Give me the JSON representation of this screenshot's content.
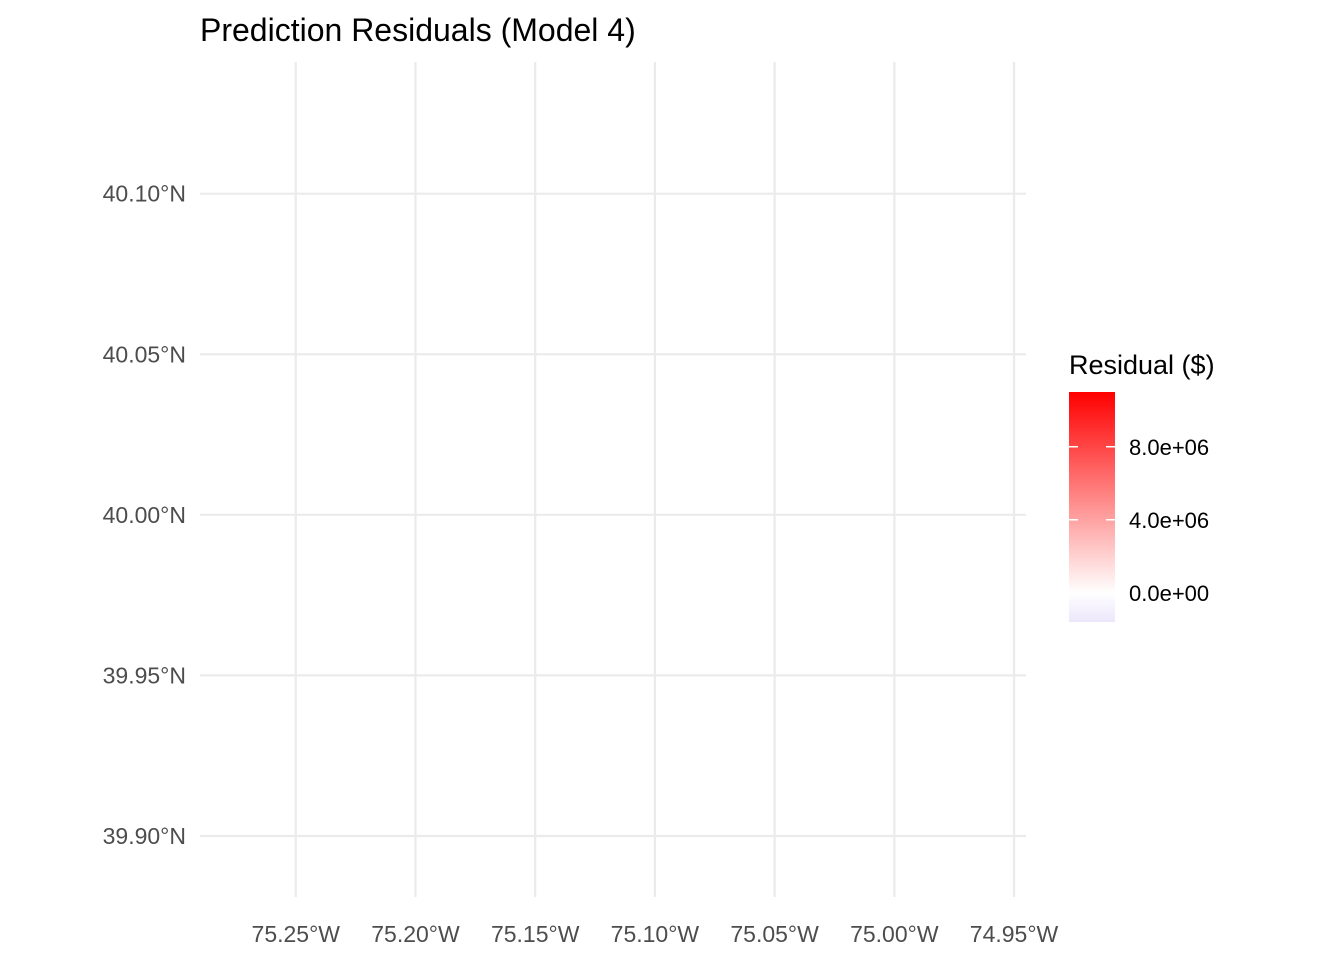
{
  "chart_data": {
    "type": "map",
    "title": "Prediction Residuals (Model 4)",
    "xlabel": "",
    "ylabel": "",
    "xlim": [
      -75.29,
      -74.945
    ],
    "ylim": [
      39.881,
      40.141
    ],
    "x_ticks": [
      {
        "value": -75.25,
        "label": "75.25°W"
      },
      {
        "value": -75.2,
        "label": "75.20°W"
      },
      {
        "value": -75.15,
        "label": "75.15°W"
      },
      {
        "value": -75.1,
        "label": "75.10°W"
      },
      {
        "value": -75.05,
        "label": "75.05°W"
      },
      {
        "value": -75.0,
        "label": "75.00°W"
      },
      {
        "value": -74.95,
        "label": "74.95°W"
      }
    ],
    "y_ticks": [
      {
        "value": 39.9,
        "label": "39.90°N"
      },
      {
        "value": 39.95,
        "label": "39.95°N"
      },
      {
        "value": 40.0,
        "label": "40.00°N"
      },
      {
        "value": 40.05,
        "label": "40.05°N"
      },
      {
        "value": 40.1,
        "label": "40.10°N"
      }
    ],
    "grid": true,
    "legend": {
      "placement": "right",
      "title": "Residual ($)",
      "min": -1600000,
      "max": 11000000,
      "colors": {
        "low": "#ece6fb",
        "mid": "#ffffff",
        "high": "#ff0000"
      },
      "midpoint": 0,
      "breaks": [
        {
          "value": 0,
          "label": "0.0e+00"
        },
        {
          "value": 4000000,
          "label": "4.0e+06"
        },
        {
          "value": 8000000,
          "label": "8.0e+06"
        }
      ]
    }
  }
}
